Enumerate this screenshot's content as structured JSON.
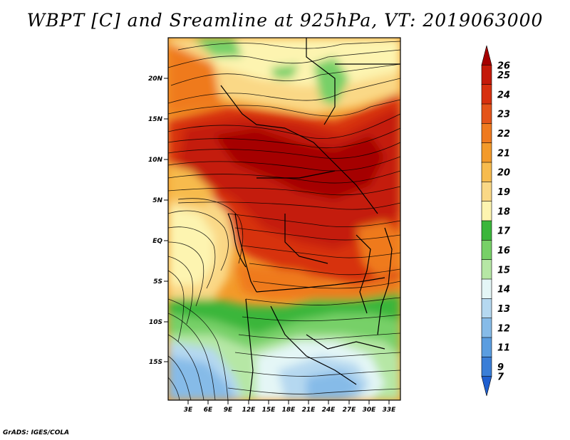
{
  "title": "WBPT [C] and Sreamline at 925hPa, VT: 2019063000",
  "footer": "GrADS: IGES/COLA",
  "map": {
    "lat_labels": [
      "20N",
      "15N",
      "10N",
      "5N",
      "EQ",
      "5S",
      "10S",
      "15S"
    ],
    "lon_labels": [
      "3E",
      "6E",
      "9E",
      "12E",
      "15E",
      "18E",
      "21E",
      "24E",
      "27E",
      "30E",
      "33E"
    ]
  },
  "colorbar": {
    "levels": [
      "26",
      "25",
      "24",
      "23",
      "22",
      "21",
      "20",
      "19",
      "18",
      "17",
      "16",
      "15",
      "14",
      "13",
      "12",
      "11",
      "9",
      "7"
    ],
    "colors": [
      "#a50000",
      "#c41a0a",
      "#d7300f",
      "#e4541a",
      "#ef7a1f",
      "#f39a2a",
      "#f7bb4e",
      "#fad886",
      "#fdf4b0",
      "#3bb63b",
      "#77d067",
      "#b6e7a5",
      "#e4f6f6",
      "#b5d8f0",
      "#86bbe8",
      "#5a9de0",
      "#3a7ed7",
      "#1f5fcf"
    ]
  }
}
